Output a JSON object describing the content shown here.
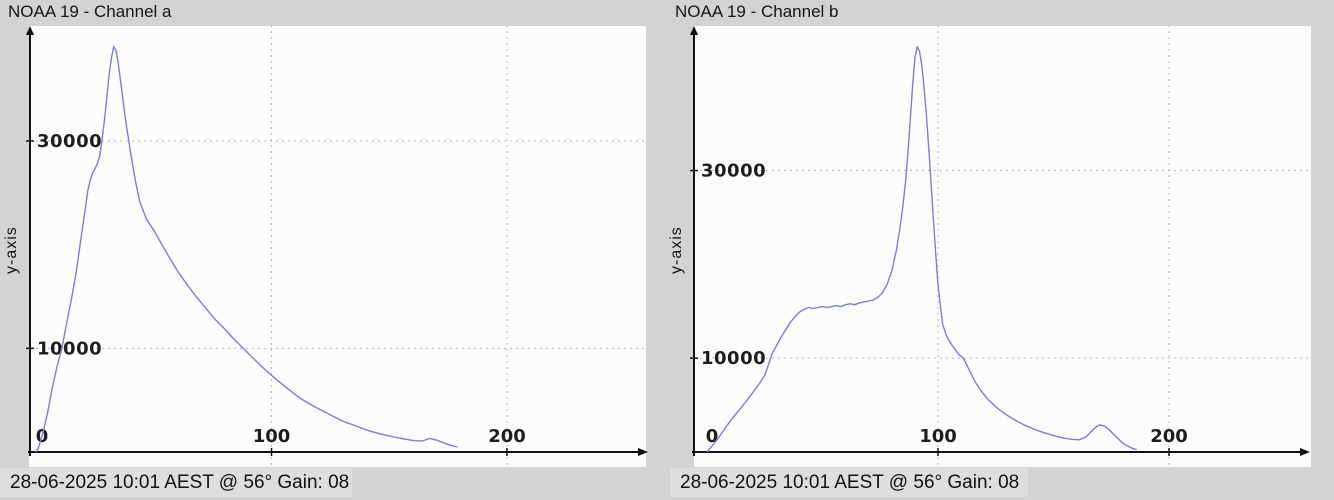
{
  "window": {
    "background_color": "#d3d3d3",
    "plot_background_color": "#fcfcfc"
  },
  "chart_data": [
    {
      "type": "line",
      "title": "NOAA 19 - Channel a",
      "ylabel": "y-axis",
      "xlabel": "",
      "caption": "28-06-2025 10:01 AEST @ 56° Gain: 08",
      "xticks": [
        0,
        100,
        200
      ],
      "yticks": [
        10000,
        30000
      ],
      "xlim": [
        0,
        258
      ],
      "ylim": [
        0,
        41000
      ],
      "grid": true,
      "legend": "none",
      "line_color": "#7d7dd2",
      "points": [
        [
          0,
          0
        ],
        [
          1,
          400
        ],
        [
          3,
          1900
        ],
        [
          5,
          3900
        ],
        [
          7,
          6300
        ],
        [
          9,
          8300
        ],
        [
          11,
          10000
        ],
        [
          13,
          12400
        ],
        [
          15,
          14700
        ],
        [
          17,
          17200
        ],
        [
          19,
          20400
        ],
        [
          21,
          23600
        ],
        [
          22,
          25200
        ],
        [
          23,
          26200
        ],
        [
          24,
          26900
        ],
        [
          25,
          27300
        ],
        [
          26,
          27800
        ],
        [
          27,
          28500
        ],
        [
          28,
          30000
        ],
        [
          29,
          31900
        ],
        [
          30,
          34100
        ],
        [
          31,
          36300
        ],
        [
          32,
          38000
        ],
        [
          33,
          39100
        ],
        [
          34,
          38700
        ],
        [
          35,
          37400
        ],
        [
          36,
          35600
        ],
        [
          38,
          32100
        ],
        [
          40,
          29100
        ],
        [
          42,
          26400
        ],
        [
          44,
          24200
        ],
        [
          47,
          22400
        ],
        [
          50,
          21400
        ],
        [
          53,
          20200
        ],
        [
          56,
          19000
        ],
        [
          60,
          17500
        ],
        [
          64,
          16200
        ],
        [
          68,
          15000
        ],
        [
          72,
          13900
        ],
        [
          76,
          12800
        ],
        [
          80,
          11900
        ],
        [
          84,
          10900
        ],
        [
          88,
          10000
        ],
        [
          92,
          9100
        ],
        [
          97,
          8000
        ],
        [
          102,
          7000
        ],
        [
          107,
          6100
        ],
        [
          112,
          5200
        ],
        [
          118,
          4400
        ],
        [
          124,
          3700
        ],
        [
          130,
          3000
        ],
        [
          136,
          2500
        ],
        [
          142,
          2000
        ],
        [
          148,
          1650
        ],
        [
          154,
          1350
        ],
        [
          160,
          1120
        ],
        [
          164,
          1050
        ],
        [
          167,
          1300
        ],
        [
          170,
          1150
        ],
        [
          173,
          900
        ],
        [
          176,
          650
        ],
        [
          179,
          480
        ]
      ]
    },
    {
      "type": "line",
      "title": "NOAA 19 - Channel b",
      "ylabel": "y-axis",
      "xlabel": "",
      "caption": "28-06-2025 10:01 AEST @ 56° Gain: 08",
      "xticks": [
        0,
        100,
        200
      ],
      "yticks": [
        10000,
        30000
      ],
      "xlim": [
        0,
        258
      ],
      "ylim": [
        0,
        45300
      ],
      "grid": true,
      "legend": "none",
      "line_color": "#7d7dd2",
      "points": [
        [
          0,
          0
        ],
        [
          2,
          600
        ],
        [
          5,
          1500
        ],
        [
          8,
          2600
        ],
        [
          11,
          3600
        ],
        [
          14,
          4500
        ],
        [
          17,
          5400
        ],
        [
          20,
          6400
        ],
        [
          23,
          7400
        ],
        [
          25,
          8200
        ],
        [
          27,
          9600
        ],
        [
          28,
          10400
        ],
        [
          30,
          11300
        ],
        [
          32,
          12200
        ],
        [
          34,
          13000
        ],
        [
          36,
          13800
        ],
        [
          38,
          14400
        ],
        [
          40,
          14900
        ],
        [
          42,
          15200
        ],
        [
          44,
          15400
        ],
        [
          46,
          15300
        ],
        [
          48,
          15400
        ],
        [
          50,
          15500
        ],
        [
          52,
          15400
        ],
        [
          54,
          15500
        ],
        [
          56,
          15600
        ],
        [
          58,
          15500
        ],
        [
          60,
          15700
        ],
        [
          62,
          15800
        ],
        [
          64,
          15700
        ],
        [
          66,
          15900
        ],
        [
          68,
          16000
        ],
        [
          70,
          16100
        ],
        [
          72,
          16200
        ],
        [
          74,
          16500
        ],
        [
          76,
          17000
        ],
        [
          78,
          17900
        ],
        [
          80,
          19300
        ],
        [
          82,
          21500
        ],
        [
          84,
          24600
        ],
        [
          85,
          26600
        ],
        [
          86,
          29000
        ],
        [
          87,
          32000
        ],
        [
          88,
          35500
        ],
        [
          89,
          39000
        ],
        [
          90,
          42000
        ],
        [
          91,
          43200
        ],
        [
          92,
          42700
        ],
        [
          93,
          41200
        ],
        [
          94,
          38800
        ],
        [
          95,
          35800
        ],
        [
          96,
          32300
        ],
        [
          97,
          28600
        ],
        [
          98,
          24800
        ],
        [
          99,
          21200
        ],
        [
          100,
          17800
        ],
        [
          102,
          13600
        ],
        [
          104,
          12200
        ],
        [
          106,
          11400
        ],
        [
          109,
          10400
        ],
        [
          111,
          10000
        ],
        [
          113,
          9000
        ],
        [
          116,
          7500
        ],
        [
          119,
          6400
        ],
        [
          122,
          5500
        ],
        [
          126,
          4600
        ],
        [
          130,
          3900
        ],
        [
          134,
          3300
        ],
        [
          138,
          2800
        ],
        [
          142,
          2400
        ],
        [
          146,
          2050
        ],
        [
          150,
          1750
        ],
        [
          154,
          1500
        ],
        [
          158,
          1350
        ],
        [
          161,
          1300
        ],
        [
          164,
          1600
        ],
        [
          166,
          2100
        ],
        [
          168,
          2600
        ],
        [
          170,
          2900
        ],
        [
          172,
          2750
        ],
        [
          174,
          2400
        ],
        [
          176,
          1900
        ],
        [
          178,
          1400
        ],
        [
          180,
          950
        ],
        [
          182,
          650
        ],
        [
          184,
          400
        ],
        [
          186,
          250
        ]
      ]
    }
  ]
}
